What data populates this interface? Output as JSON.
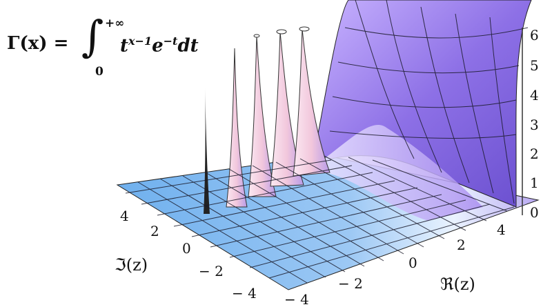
{
  "formula": {
    "lhs": "Γ(x) =",
    "integral_sign": "∫",
    "upper_limit": "+∞",
    "lower_limit": "0",
    "base_t": "t",
    "exp_1": "x−1",
    "base_e": "e",
    "exp_2": "−t",
    "tail": "dt"
  },
  "axes": {
    "real_label": "ℜ(z)",
    "imag_label": "ℑ(z)",
    "real_ticks": [
      "− 4",
      "− 2",
      "0",
      "2",
      "4"
    ],
    "imag_ticks": [
      "4",
      "2",
      "0",
      "− 2",
      "− 4"
    ],
    "z_ticks": [
      "0",
      "1",
      "2",
      "3",
      "4",
      "5",
      "6"
    ]
  },
  "colors": {
    "floor": "#79b6f0",
    "wall": "#8c6de8",
    "peak": "#f6d3e6",
    "grid": "#1a1a2a"
  }
}
